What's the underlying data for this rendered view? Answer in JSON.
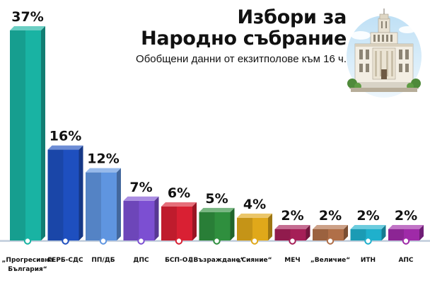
{
  "title_line1": "Избори за",
  "title_line2": "Народно събрание",
  "subtitle": "Обобщени данни от екзитполове към 16 ч.",
  "chart_data": {
    "type": "bar",
    "categories": [
      "„Прогресивна България“",
      "ГЕРБ-СДС",
      "ПП/ДБ",
      "ДПС",
      "БСП-ОЛ",
      "„Възраждане“",
      "„Сияние“",
      "МЕЧ",
      "„Величие“",
      "ИТН",
      "АПС"
    ],
    "category_lines": [
      [
        "„Прогресивна",
        "България“"
      ],
      [
        "ГЕРБ-СДС"
      ],
      [
        "ПП/ДБ"
      ],
      [
        "ДПС"
      ],
      [
        "БСП-ОЛ"
      ],
      [
        "„Възраждане“"
      ],
      [
        "„Сияние“"
      ],
      [
        "МЕЧ"
      ],
      [
        "„Величие“"
      ],
      [
        "ИТН"
      ],
      [
        "АПС"
      ]
    ],
    "values": [
      37,
      16,
      12,
      7,
      6,
      5,
      4,
      2,
      2,
      2,
      2
    ],
    "value_labels": [
      "37%",
      "16%",
      "12%",
      "7%",
      "6%",
      "5%",
      "4%",
      "2%",
      "2%",
      "2%",
      "2%"
    ],
    "unit": "%",
    "colors": [
      "#19b3a3",
      "#1e4fbf",
      "#5f95e0",
      "#7c4fd2",
      "#d92033",
      "#2f8f3e",
      "#e0a81a",
      "#a51f57",
      "#b06f48",
      "#1fb0cc",
      "#9f2aa8"
    ],
    "ylim": [
      0,
      37
    ],
    "grid": false,
    "legend": "none",
    "baseline_color": "#c9d3e0"
  }
}
